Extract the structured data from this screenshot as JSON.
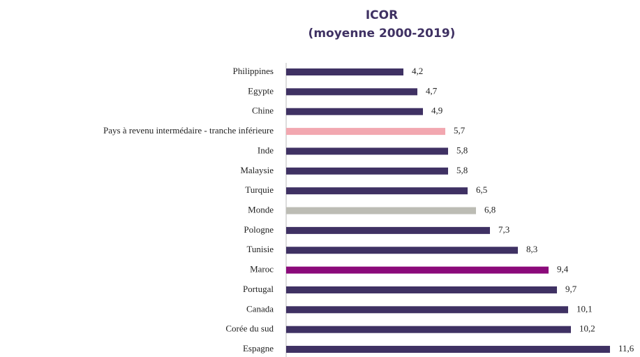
{
  "chart_data": {
    "type": "hbar",
    "title": "ICOR",
    "subtitle": "(moyenne 2000-2019)",
    "categories": [
      "Philippines",
      "Egypte",
      "Chine",
      "Pays à revenu intermédaire - tranche inférieure",
      "Inde",
      "Malaysie",
      "Turquie",
      "Monde",
      "Pologne",
      "Tunisie",
      "Maroc",
      "Portugal",
      "Canada",
      "Corée du sud",
      "Espagne"
    ],
    "values": [
      4.2,
      4.7,
      4.9,
      5.7,
      5.8,
      5.8,
      6.5,
      6.8,
      7.3,
      8.3,
      9.4,
      9.7,
      10.1,
      10.2,
      11.6
    ],
    "value_labels": [
      "4,2",
      "4,7",
      "4,9",
      "5,7",
      "5,8",
      "5,8",
      "6,5",
      "6,8",
      "7,3",
      "8,3",
      "9,4",
      "9,7",
      "10,1",
      "10,2",
      "11,6"
    ],
    "colors": [
      "#3f3163",
      "#3f3163",
      "#3f3163",
      "#f2a7b0",
      "#3f3163",
      "#3f3163",
      "#3f3163",
      "#bcbcb4",
      "#3f3163",
      "#3f3163",
      "#8b0a7a",
      "#3f3163",
      "#3f3163",
      "#3f3163",
      "#3f3163"
    ],
    "xlim": [
      0,
      12.5
    ]
  }
}
